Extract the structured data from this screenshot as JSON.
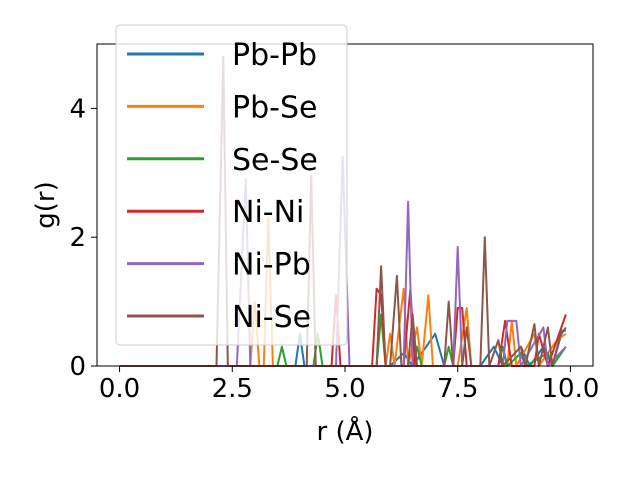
{
  "chart_data": {
    "type": "line",
    "title": "",
    "xlabel": "r (Å)",
    "ylabel": "g(r)",
    "xlim": [
      -0.5,
      10.5
    ],
    "ylim": [
      0,
      5.0
    ],
    "xticks": [
      0.0,
      2.5,
      5.0,
      7.5,
      10.0
    ],
    "xtick_labels": [
      "0.0",
      "2.5",
      "5.0",
      "7.5",
      "10.0"
    ],
    "yticks": [
      0,
      2,
      4
    ],
    "ytick_labels": [
      "0",
      "2",
      "4"
    ],
    "grid": false,
    "legend_position": "top-left",
    "series": [
      {
        "name": "Pb-Pb",
        "color": "#1f77b4",
        "points": [
          [
            0,
            0
          ],
          [
            2.0,
            0
          ],
          [
            2.05,
            0
          ],
          [
            2.15,
            0
          ],
          [
            3.9,
            0
          ],
          [
            4.0,
            0.5
          ],
          [
            4.1,
            0
          ],
          [
            5.5,
            0
          ],
          [
            6.0,
            0
          ],
          [
            6.3,
            0.2
          ],
          [
            6.5,
            0
          ],
          [
            7.0,
            0.5
          ],
          [
            7.2,
            0
          ],
          [
            8.0,
            0
          ],
          [
            8.3,
            0.3
          ],
          [
            8.5,
            0
          ],
          [
            8.9,
            0.3
          ],
          [
            9.1,
            0
          ],
          [
            9.4,
            0.3
          ],
          [
            9.6,
            0
          ],
          [
            9.8,
            0.5
          ],
          [
            9.9,
            0.6
          ]
        ]
      },
      {
        "name": "Pb-Se",
        "color": "#ff7f0e",
        "points": [
          [
            0,
            0
          ],
          [
            2.9,
            0
          ],
          [
            3.0,
            1.0
          ],
          [
            3.1,
            0
          ],
          [
            3.2,
            0
          ],
          [
            3.3,
            2.3
          ],
          [
            3.4,
            0
          ],
          [
            5.9,
            0
          ],
          [
            6.0,
            0.5
          ],
          [
            6.1,
            0
          ],
          [
            6.3,
            1.2
          ],
          [
            6.4,
            0
          ],
          [
            6.6,
            0.6
          ],
          [
            6.7,
            0
          ],
          [
            6.85,
            1.1
          ],
          [
            6.95,
            0
          ],
          [
            7.5,
            0
          ],
          [
            7.7,
            0.9
          ],
          [
            7.8,
            0
          ],
          [
            8.6,
            0
          ],
          [
            8.7,
            0.7
          ],
          [
            8.8,
            0
          ],
          [
            9.2,
            0.5
          ],
          [
            9.3,
            0
          ],
          [
            9.7,
            0.4
          ],
          [
            9.9,
            0.5
          ]
        ]
      },
      {
        "name": "Se-Se",
        "color": "#2ca02c",
        "points": [
          [
            0,
            0
          ],
          [
            3.5,
            0
          ],
          [
            3.6,
            0.3
          ],
          [
            3.7,
            0
          ],
          [
            4.3,
            0
          ],
          [
            4.4,
            0.5
          ],
          [
            4.5,
            0
          ],
          [
            5.7,
            0
          ],
          [
            5.8,
            0.8
          ],
          [
            5.9,
            0
          ],
          [
            6.5,
            0
          ],
          [
            6.6,
            0.3
          ],
          [
            6.7,
            0
          ],
          [
            7.2,
            0
          ],
          [
            7.3,
            0.3
          ],
          [
            7.4,
            0
          ],
          [
            8.4,
            0
          ],
          [
            8.5,
            0.3
          ],
          [
            8.6,
            0
          ],
          [
            8.9,
            0.2
          ],
          [
            9.0,
            0
          ],
          [
            9.5,
            0.2
          ],
          [
            9.6,
            0
          ],
          [
            9.9,
            0.3
          ]
        ]
      },
      {
        "name": "Ni-Ni",
        "color": "#d62728",
        "points": [
          [
            0,
            0
          ],
          [
            4.7,
            0
          ],
          [
            4.8,
            1.1
          ],
          [
            4.9,
            0
          ],
          [
            5.6,
            0
          ],
          [
            5.7,
            1.2
          ],
          [
            5.8,
            1.1
          ],
          [
            5.9,
            0
          ],
          [
            6.3,
            0
          ],
          [
            6.45,
            1.2
          ],
          [
            6.55,
            0
          ],
          [
            7.4,
            0
          ],
          [
            7.5,
            0.9
          ],
          [
            7.6,
            0.9
          ],
          [
            7.7,
            0
          ],
          [
            8.4,
            0
          ],
          [
            8.55,
            0.7
          ],
          [
            8.7,
            0
          ],
          [
            9.2,
            0
          ],
          [
            9.3,
            0.5
          ],
          [
            9.5,
            0
          ],
          [
            9.7,
            0.4
          ],
          [
            9.9,
            0.8
          ]
        ]
      },
      {
        "name": "Ni-Pb",
        "color": "#9467bd",
        "points": [
          [
            0,
            0
          ],
          [
            2.6,
            0
          ],
          [
            2.8,
            2.9
          ],
          [
            2.9,
            0
          ],
          [
            4.8,
            0
          ],
          [
            4.95,
            3.25
          ],
          [
            5.1,
            0
          ],
          [
            6.3,
            0
          ],
          [
            6.4,
            2.55
          ],
          [
            6.5,
            0
          ],
          [
            7.4,
            0
          ],
          [
            7.5,
            1.85
          ],
          [
            7.6,
            0
          ],
          [
            8.5,
            0
          ],
          [
            8.6,
            0.7
          ],
          [
            8.8,
            0.7
          ],
          [
            8.9,
            0
          ],
          [
            9.4,
            0.6
          ],
          [
            9.5,
            0
          ],
          [
            9.9,
            0.3
          ]
        ]
      },
      {
        "name": "Ni-Se",
        "color": "#8c564b",
        "points": [
          [
            0,
            0
          ],
          [
            2.15,
            0
          ],
          [
            2.3,
            4.8
          ],
          [
            2.4,
            0
          ],
          [
            4.15,
            0
          ],
          [
            4.25,
            2.95
          ],
          [
            4.35,
            0
          ],
          [
            5.7,
            0
          ],
          [
            5.8,
            1.55
          ],
          [
            5.9,
            0
          ],
          [
            6.0,
            0
          ],
          [
            6.15,
            1.4
          ],
          [
            6.25,
            0
          ],
          [
            6.4,
            0
          ],
          [
            6.5,
            0.8
          ],
          [
            6.6,
            0
          ],
          [
            7.2,
            0
          ],
          [
            7.3,
            1.0
          ],
          [
            7.4,
            0
          ],
          [
            7.6,
            0
          ],
          [
            7.7,
            0.6
          ],
          [
            7.8,
            0
          ],
          [
            8.0,
            0
          ],
          [
            8.1,
            2.0
          ],
          [
            8.2,
            0
          ],
          [
            8.4,
            0.4
          ],
          [
            8.5,
            0
          ],
          [
            8.9,
            0.3
          ],
          [
            9.0,
            0
          ],
          [
            9.2,
            0.65
          ],
          [
            9.3,
            0
          ],
          [
            9.5,
            0.6
          ],
          [
            9.6,
            0
          ],
          [
            9.8,
            0.55
          ],
          [
            9.9,
            0.55
          ]
        ]
      }
    ]
  }
}
